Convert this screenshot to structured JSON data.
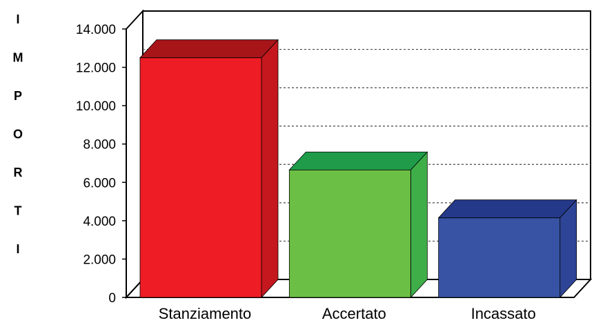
{
  "chart_data": {
    "type": "bar",
    "title": "",
    "xlabel": "",
    "ylabel": "IMPORTI",
    "ylabel_letters": [
      "I",
      "M",
      "P",
      "O",
      "R",
      "T",
      "I"
    ],
    "categories": [
      "Stanziamento",
      "Accertato",
      "Incassato"
    ],
    "values": [
      12500,
      6650,
      4150
    ],
    "ylim": [
      0,
      14000
    ],
    "yticks": [
      0,
      2000,
      4000,
      6000,
      8000,
      10000,
      12000,
      14000
    ],
    "ytick_labels": [
      "0",
      "2.000",
      "4.000",
      "6.000",
      "8.000",
      "10.000",
      "12.000",
      "14.000"
    ],
    "grid": true,
    "legend": "none",
    "bar_colors": [
      {
        "front": "#ee1c24",
        "side": "#c4181e",
        "top": "#a81519"
      },
      {
        "front": "#6bbf45",
        "side": "#3fae49",
        "top": "#1f9b4a"
      },
      {
        "front": "#3853a4",
        "side": "#2e4597",
        "top": "#25398a"
      }
    ],
    "floor_color": "#2e3a8f"
  }
}
